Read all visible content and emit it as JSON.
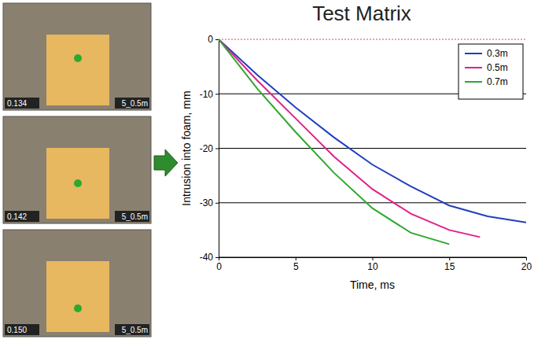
{
  "chart_data": {
    "type": "line",
    "title": "Test Matrix",
    "x_label": "Time, ms",
    "y_label": "Intrusion into foam, mm",
    "x": [
      0,
      2.5,
      5,
      7.5,
      10,
      12.5,
      15,
      17,
      17.5,
      20
    ],
    "series": [
      {
        "name": "0.3m",
        "color": "#1f3fbf",
        "values": [
          0,
          -6.5,
          -12.5,
          -18,
          -23,
          -27,
          -30.5,
          -32.1,
          -32.5,
          -33.6
        ]
      },
      {
        "name": "0.5m",
        "color": "#e0208a",
        "values": [
          0,
          -7.5,
          -14.5,
          -21.5,
          -27.5,
          -32,
          -35,
          -36.3,
          null,
          null
        ]
      },
      {
        "name": "0.7m",
        "color": "#2ea82e",
        "values": [
          0,
          -9,
          -17,
          -24.5,
          -31,
          -35.5,
          -37.6,
          null,
          null,
          null
        ]
      }
    ],
    "xlim": [
      0,
      20
    ],
    "xticks": [
      0,
      5,
      10,
      15,
      20
    ],
    "ylim": [
      -40,
      0
    ],
    "yticks": [
      0,
      -10,
      -20,
      -30,
      -40
    ],
    "grid": true,
    "legend": "top-right",
    "annotations": [
      "0.134",
      "5_0.5m",
      "0.142",
      "5_0.5m",
      "0.150",
      "5_0.5m"
    ]
  }
}
